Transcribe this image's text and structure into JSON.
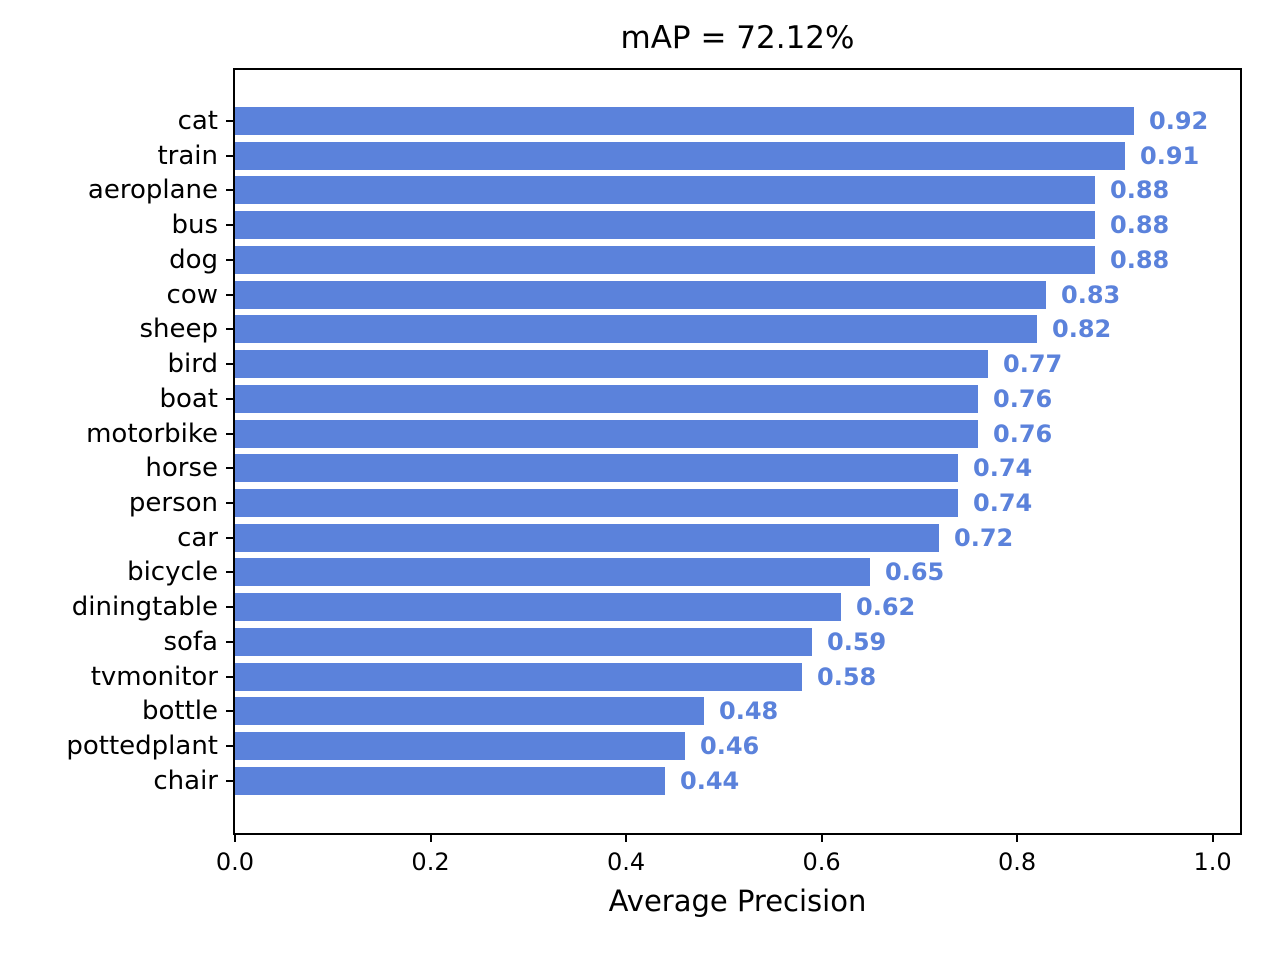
{
  "chart_data": {
    "type": "bar",
    "orientation": "horizontal",
    "title": "mAP = 72.12%",
    "xlabel": "Average Precision",
    "ylabel": "",
    "categories": [
      "cat",
      "train",
      "aeroplane",
      "bus",
      "dog",
      "cow",
      "sheep",
      "bird",
      "boat",
      "motorbike",
      "horse",
      "person",
      "car",
      "bicycle",
      "diningtable",
      "sofa",
      "tvmonitor",
      "bottle",
      "pottedplant",
      "chair"
    ],
    "values": [
      0.92,
      0.91,
      0.88,
      0.88,
      0.88,
      0.83,
      0.82,
      0.77,
      0.76,
      0.76,
      0.74,
      0.74,
      0.72,
      0.65,
      0.62,
      0.59,
      0.58,
      0.48,
      0.46,
      0.44
    ],
    "value_labels": [
      "0.92",
      "0.91",
      "0.88",
      "0.88",
      "0.88",
      "0.83",
      "0.82",
      "0.77",
      "0.76",
      "0.76",
      "0.74",
      "0.74",
      "0.72",
      "0.65",
      "0.62",
      "0.59",
      "0.58",
      "0.48",
      "0.46",
      "0.44"
    ],
    "xlim": [
      0.0,
      1.028
    ],
    "xtick_labels": [
      "0.0",
      "0.2",
      "0.4",
      "0.6",
      "0.8",
      "1.0"
    ],
    "xtick_values": [
      0.0,
      0.2,
      0.4,
      0.6,
      0.8,
      1.0
    ],
    "grid": false,
    "legend": "none",
    "bar_color": "#5b82db",
    "value_label_color": "#5b82db",
    "axis_color": "#000000",
    "background_color": "#ffffff"
  }
}
